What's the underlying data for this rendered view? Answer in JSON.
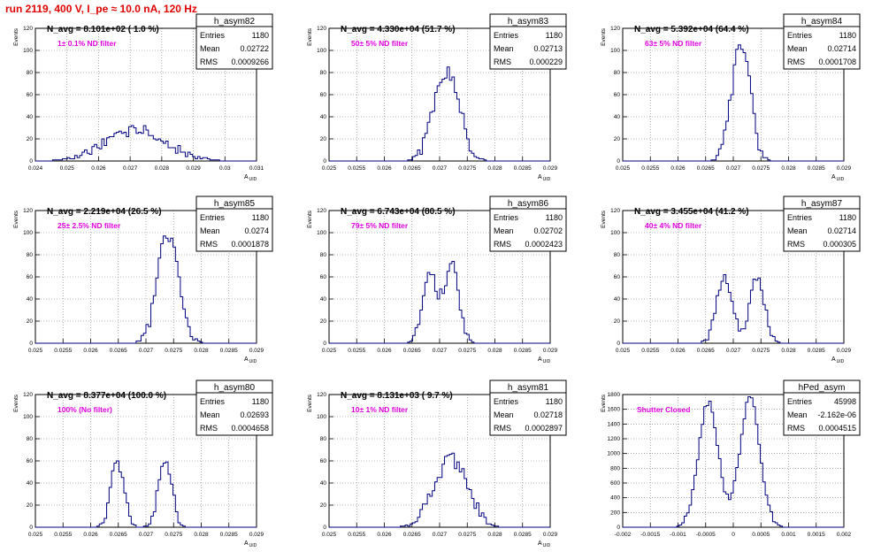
{
  "header": {
    "title": "run 2119,   400 V, I_pe ≈ 10.0 nA, 120 Hz"
  },
  "common": {
    "ylabel": "Events",
    "stat_labels": [
      "Entries",
      "Mean",
      "RMS"
    ],
    "colors": {
      "histogram": "#000080",
      "annotation": "#e000e0",
      "header": "#e00000",
      "grid": "#777777"
    }
  },
  "chart_data": [
    {
      "type": "histogram",
      "name": "h_asym82",
      "title": "N_avg = 8.101e+02 ( 1.0 %)",
      "annotation": "1± 0.1% ND filter",
      "stats": {
        "Entries": "1180",
        "Mean": "0.02722",
        "RMS": "0.0009266"
      },
      "xlabel": "A_UID",
      "xlim": [
        0.024,
        0.031
      ],
      "ylim": [
        0,
        120
      ],
      "xticks": [
        0.024,
        0.025,
        0.026,
        0.027,
        0.028,
        0.029,
        0.03,
        0.031
      ],
      "xtick_labels": [
        "0.024",
        "0.025",
        "0.026",
        "0.027",
        "0.028",
        "0.029",
        "0.03",
        "0.031"
      ],
      "yticks": [
        0,
        20,
        40,
        60,
        80,
        100,
        120
      ],
      "ytick_labels": [
        "0",
        "20",
        "40",
        "60",
        "80",
        "100",
        "120"
      ],
      "shape": [
        {
          "mu": 0.0272,
          "sigma": 0.00095,
          "amp": 28
        }
      ],
      "noise": 5
    },
    {
      "type": "histogram",
      "name": "h_asym83",
      "title": "N_avg = 4.330e+04 (51.7 %)",
      "annotation": "50± 5% ND filter",
      "stats": {
        "Entries": "1180",
        "Mean": "0.02713",
        "RMS": "0.000229"
      },
      "xlabel": "A_UID",
      "xlim": [
        0.025,
        0.029
      ],
      "ylim": [
        0,
        120
      ],
      "xticks": [
        0.025,
        0.0255,
        0.026,
        0.0265,
        0.027,
        0.0275,
        0.028,
        0.0285,
        0.029
      ],
      "xtick_labels": [
        "0.025",
        "0.0255",
        "0.026",
        "0.0265",
        "0.027",
        "0.0275",
        "0.028",
        "0.0285",
        "0.029"
      ],
      "yticks": [
        0,
        20,
        40,
        60,
        80,
        100,
        120
      ],
      "ytick_labels": [
        "0",
        "20",
        "40",
        "60",
        "80",
        "100",
        "120"
      ],
      "shape": [
        {
          "mu": 0.02713,
          "sigma": 0.00023,
          "amp": 82
        }
      ],
      "noise": 7
    },
    {
      "type": "histogram",
      "name": "h_asym84",
      "title": "N_avg = 5.392e+04 (64.4 %)",
      "annotation": "63± 5% ND filter",
      "stats": {
        "Entries": "1180",
        "Mean": "0.02714",
        "RMS": "0.0001708"
      },
      "xlabel": "A_UID",
      "xlim": [
        0.025,
        0.029
      ],
      "ylim": [
        0,
        120
      ],
      "xticks": [
        0.025,
        0.0255,
        0.026,
        0.0265,
        0.027,
        0.0275,
        0.028,
        0.0285,
        0.029
      ],
      "xtick_labels": [
        "0.025",
        "0.0255",
        "0.026",
        "0.0265",
        "0.027",
        "0.0275",
        "0.028",
        "0.0285",
        "0.029"
      ],
      "yticks": [
        0,
        20,
        40,
        60,
        80,
        100,
        120
      ],
      "ytick_labels": [
        "0",
        "20",
        "40",
        "60",
        "80",
        "100",
        "120"
      ],
      "shape": [
        {
          "mu": 0.02714,
          "sigma": 0.00017,
          "amp": 105
        }
      ],
      "noise": 8
    },
    {
      "type": "histogram",
      "name": "h_asym85",
      "title": "N_avg = 2.219e+04 (26.5 %)",
      "annotation": "25± 2.5% ND filter",
      "stats": {
        "Entries": "1180",
        "Mean": "0.0274",
        "RMS": "0.0001878"
      },
      "xlabel": "A_UID",
      "xlim": [
        0.025,
        0.029
      ],
      "ylim": [
        0,
        120
      ],
      "xticks": [
        0.025,
        0.0255,
        0.026,
        0.0265,
        0.027,
        0.0275,
        0.028,
        0.0285,
        0.029
      ],
      "xtick_labels": [
        "0.025",
        "0.0255",
        "0.026",
        "0.0265",
        "0.027",
        "0.0275",
        "0.028",
        "0.0285",
        "0.029"
      ],
      "yticks": [
        0,
        20,
        40,
        60,
        80,
        100,
        120
      ],
      "ytick_labels": [
        "0",
        "20",
        "40",
        "60",
        "80",
        "100",
        "120"
      ],
      "shape": [
        {
          "mu": 0.0274,
          "sigma": 0.00019,
          "amp": 100
        }
      ],
      "noise": 8
    },
    {
      "type": "histogram",
      "name": "h_asym86",
      "title": "N_avg = 6.743e+04 (80.5 %)",
      "annotation": "79± 5% ND filter",
      "stats": {
        "Entries": "1180",
        "Mean": "0.02702",
        "RMS": "0.0002423"
      },
      "xlabel": "A_UID",
      "xlim": [
        0.025,
        0.029
      ],
      "ylim": [
        0,
        120
      ],
      "xticks": [
        0.025,
        0.0255,
        0.026,
        0.0265,
        0.027,
        0.0275,
        0.028,
        0.0285,
        0.029
      ],
      "xtick_labels": [
        "0.025",
        "0.0255",
        "0.026",
        "0.0265",
        "0.027",
        "0.0275",
        "0.028",
        "0.0285",
        "0.029"
      ],
      "yticks": [
        0,
        20,
        40,
        60,
        80,
        100,
        120
      ],
      "ytick_labels": [
        "0",
        "20",
        "40",
        "60",
        "80",
        "100",
        "120"
      ],
      "shape": [
        {
          "mu": 0.02683,
          "sigma": 0.00013,
          "amp": 62
        },
        {
          "mu": 0.02722,
          "sigma": 0.00013,
          "amp": 70
        }
      ],
      "noise": 6
    },
    {
      "type": "histogram",
      "name": "h_asym87",
      "title": "N_avg = 3.455e+04 (41.2 %)",
      "annotation": "40± 4% ND filter",
      "stats": {
        "Entries": "1180",
        "Mean": "0.02714",
        "RMS": "0.000305"
      },
      "xlabel": "A_UID",
      "xlim": [
        0.025,
        0.029
      ],
      "ylim": [
        0,
        120
      ],
      "xticks": [
        0.025,
        0.0255,
        0.026,
        0.0265,
        0.027,
        0.0275,
        0.028,
        0.0285,
        0.029
      ],
      "xtick_labels": [
        "0.025",
        "0.0255",
        "0.026",
        "0.0265",
        "0.027",
        "0.0275",
        "0.028",
        "0.0285",
        "0.029"
      ],
      "yticks": [
        0,
        20,
        40,
        60,
        80,
        100,
        120
      ],
      "ytick_labels": [
        "0",
        "20",
        "40",
        "60",
        "80",
        "100",
        "120"
      ],
      "shape": [
        {
          "mu": 0.02683,
          "sigma": 0.00014,
          "amp": 60
        },
        {
          "mu": 0.02743,
          "sigma": 0.00014,
          "amp": 58
        }
      ],
      "noise": 6
    },
    {
      "type": "histogram",
      "name": "h_asym80",
      "title": "N_avg = 8.377e+04 (100.0 %)",
      "annotation": "100% (No filter)",
      "stats": {
        "Entries": "1180",
        "Mean": "0.02693",
        "RMS": "0.0004658"
      },
      "xlabel": "A_UID",
      "xlim": [
        0.025,
        0.029
      ],
      "ylim": [
        0,
        120
      ],
      "xticks": [
        0.025,
        0.0255,
        0.026,
        0.0265,
        0.027,
        0.0275,
        0.028,
        0.0285,
        0.029
      ],
      "xtick_labels": [
        "0.025",
        "0.0255",
        "0.026",
        "0.0265",
        "0.027",
        "0.0275",
        "0.028",
        "0.0285",
        "0.029"
      ],
      "yticks": [
        0,
        20,
        40,
        60,
        80,
        100,
        120
      ],
      "ytick_labels": [
        "0",
        "20",
        "40",
        "60",
        "80",
        "100",
        "120"
      ],
      "shape": [
        {
          "mu": 0.02648,
          "sigma": 0.00012,
          "amp": 60
        },
        {
          "mu": 0.02735,
          "sigma": 0.00012,
          "amp": 62
        }
      ],
      "noise": 5
    },
    {
      "type": "histogram",
      "name": "h_asym81",
      "title": "N_avg = 8.131e+03 ( 9.7 %)",
      "annotation": "10± 1% ND filter",
      "stats": {
        "Entries": "1180",
        "Mean": "0.02718",
        "RMS": "0.0002897"
      },
      "xlabel": "A_UID",
      "xlim": [
        0.025,
        0.029
      ],
      "ylim": [
        0,
        120
      ],
      "xticks": [
        0.025,
        0.0255,
        0.026,
        0.0265,
        0.027,
        0.0275,
        0.028,
        0.0285,
        0.029
      ],
      "xtick_labels": [
        "0.025",
        "0.0255",
        "0.026",
        "0.0265",
        "0.027",
        "0.0275",
        "0.028",
        "0.0285",
        "0.029"
      ],
      "yticks": [
        0,
        20,
        40,
        60,
        80,
        100,
        120
      ],
      "ytick_labels": [
        "0",
        "20",
        "40",
        "60",
        "80",
        "100",
        "120"
      ],
      "shape": [
        {
          "mu": 0.0272,
          "sigma": 0.00029,
          "amp": 63
        }
      ],
      "noise": 7
    },
    {
      "type": "histogram",
      "name": "hPed_asym",
      "title": "",
      "annotation": "Shutter Closed",
      "stats": {
        "Entries": "45998",
        "Mean": "-2.162e-06",
        "RMS": "0.0004515"
      },
      "xlabel": "",
      "xlim": [
        -0.002,
        0.002
      ],
      "ylim": [
        0,
        1800
      ],
      "xticks": [
        -0.002,
        -0.0015,
        -0.001,
        -0.0005,
        0,
        0.0005,
        0.001,
        0.0015,
        0.002
      ],
      "xtick_labels": [
        "-0.002",
        "-0.0015",
        "-0.001",
        "-0.0005",
        "0",
        "0.0005",
        "0.001",
        "0.0015",
        "0.002"
      ],
      "yticks": [
        0,
        200,
        400,
        600,
        800,
        1000,
        1200,
        1400,
        1600,
        1800
      ],
      "ytick_labels": [
        "0",
        "200",
        "400",
        "600",
        "800",
        "1000",
        "1200",
        "1400",
        "1600",
        "1800"
      ],
      "shape": [
        {
          "mu": -0.00045,
          "sigma": 0.00018,
          "amp": 1700
        },
        {
          "mu": 0.0003,
          "sigma": 0.00018,
          "amp": 1750
        }
      ],
      "noise": 40
    }
  ]
}
